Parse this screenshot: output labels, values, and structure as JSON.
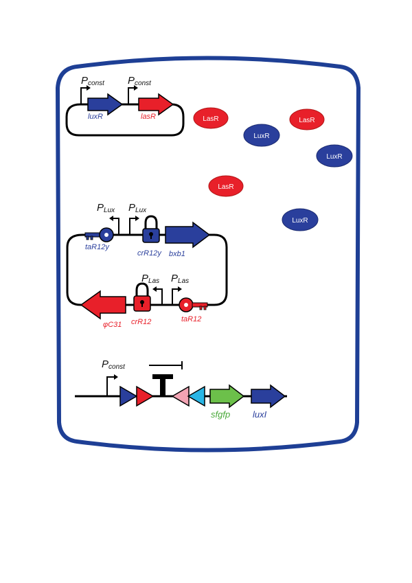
{
  "colors": {
    "cell_border": "#1e3f95",
    "blue_part": "#2a3f9c",
    "red_part": "#e8202a",
    "pink_part": "#f2a3b3",
    "cyan_part": "#29b6e6",
    "green_part": "#6cc04a",
    "blue_text": "#2a3f9c",
    "red_text": "#e8202a",
    "green_text": "#4aa93a"
  },
  "plasmid1": {
    "promoter1": {
      "main": "P",
      "sub": "const"
    },
    "promoter2": {
      "main": "P",
      "sub": "const"
    },
    "gene1": "luxR",
    "gene2": "lasR"
  },
  "proteins": [
    "LasR",
    "LuxR",
    "LasR",
    "LuxR",
    "LasR",
    "LuxR"
  ],
  "plasmid2": {
    "top_promoter1": {
      "main": "P",
      "sub": "Lux"
    },
    "top_promoter2": {
      "main": "P",
      "sub": "Lux"
    },
    "bottom_promoter1": {
      "main": "P",
      "sub": "Las"
    },
    "bottom_promoter2": {
      "main": "P",
      "sub": "Las"
    },
    "key_top": "taR12y",
    "lock_top": "crR12y",
    "gene_top": "bxb1",
    "gene_bottom": "φC31",
    "lock_bottom": "crR12",
    "key_bottom": "taR12"
  },
  "construct3": {
    "promoter": {
      "main": "P",
      "sub": "const"
    },
    "gene1": "sfgfp",
    "gene2": "luxI"
  }
}
